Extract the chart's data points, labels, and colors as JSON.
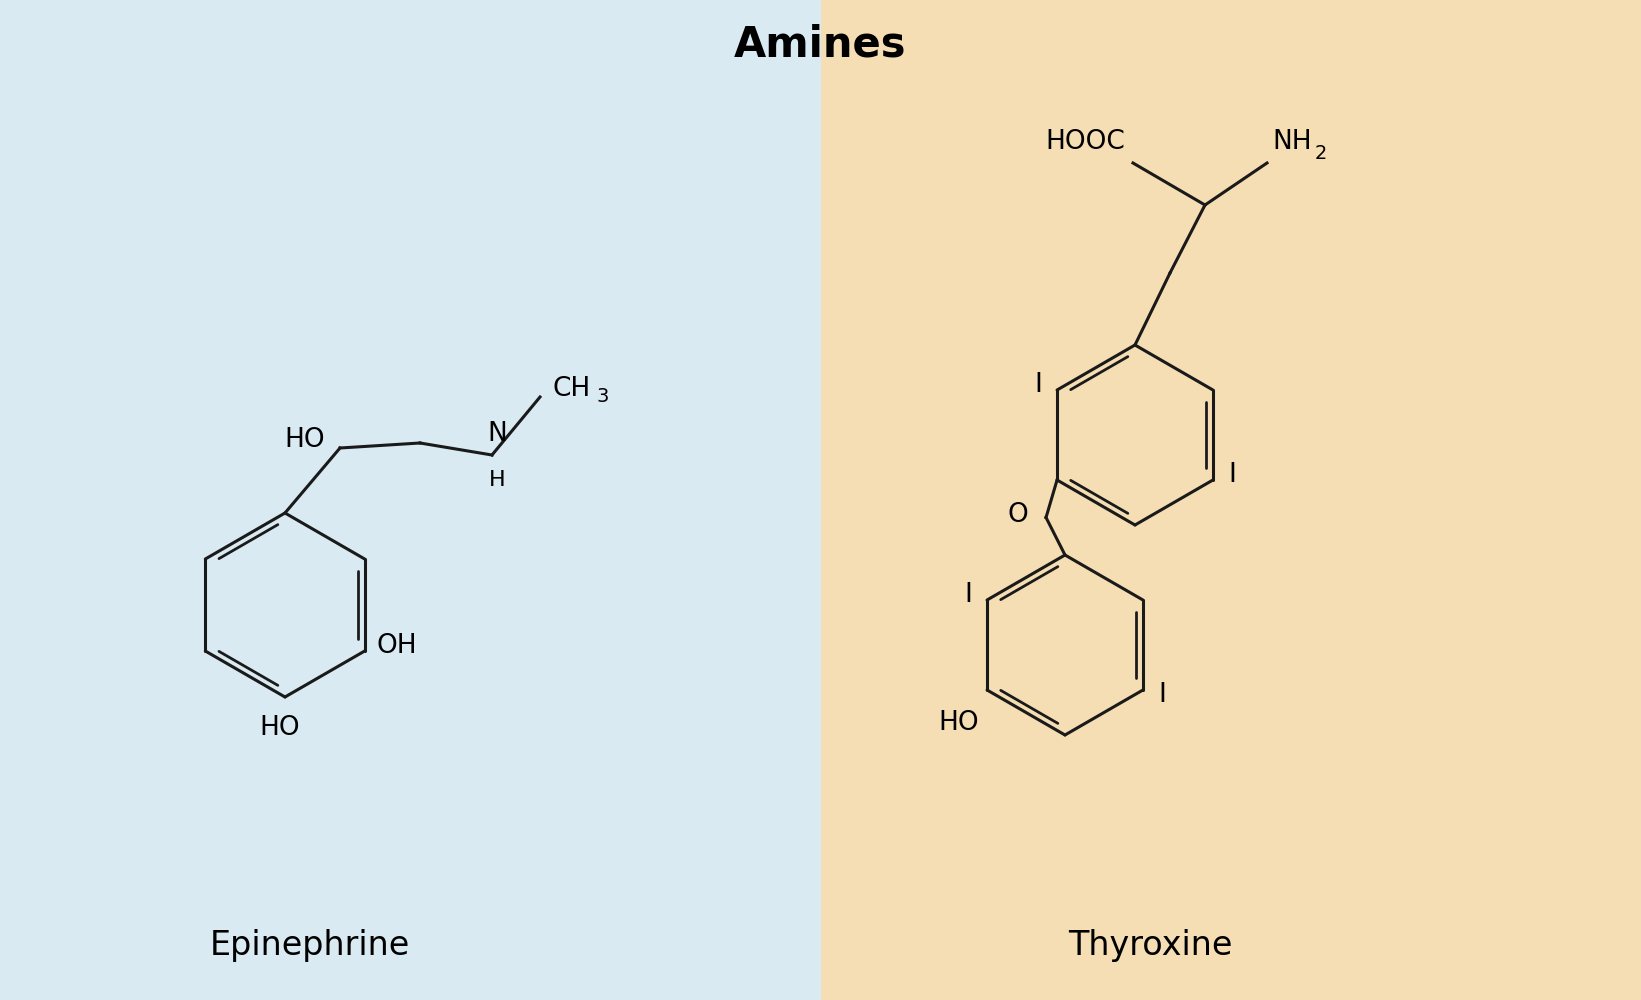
{
  "title": "Amines",
  "title_fontsize": 30,
  "title_fontweight": "bold",
  "left_bg": "#daeaf3",
  "right_bg": "#f5deb3",
  "line_color": "#1a1a1a",
  "line_width": 2.2,
  "label_left": "Epinephrine",
  "label_right": "Thyroxine",
  "label_fontsize": 24,
  "text_fontsize": 19,
  "sub_fontsize": 14
}
